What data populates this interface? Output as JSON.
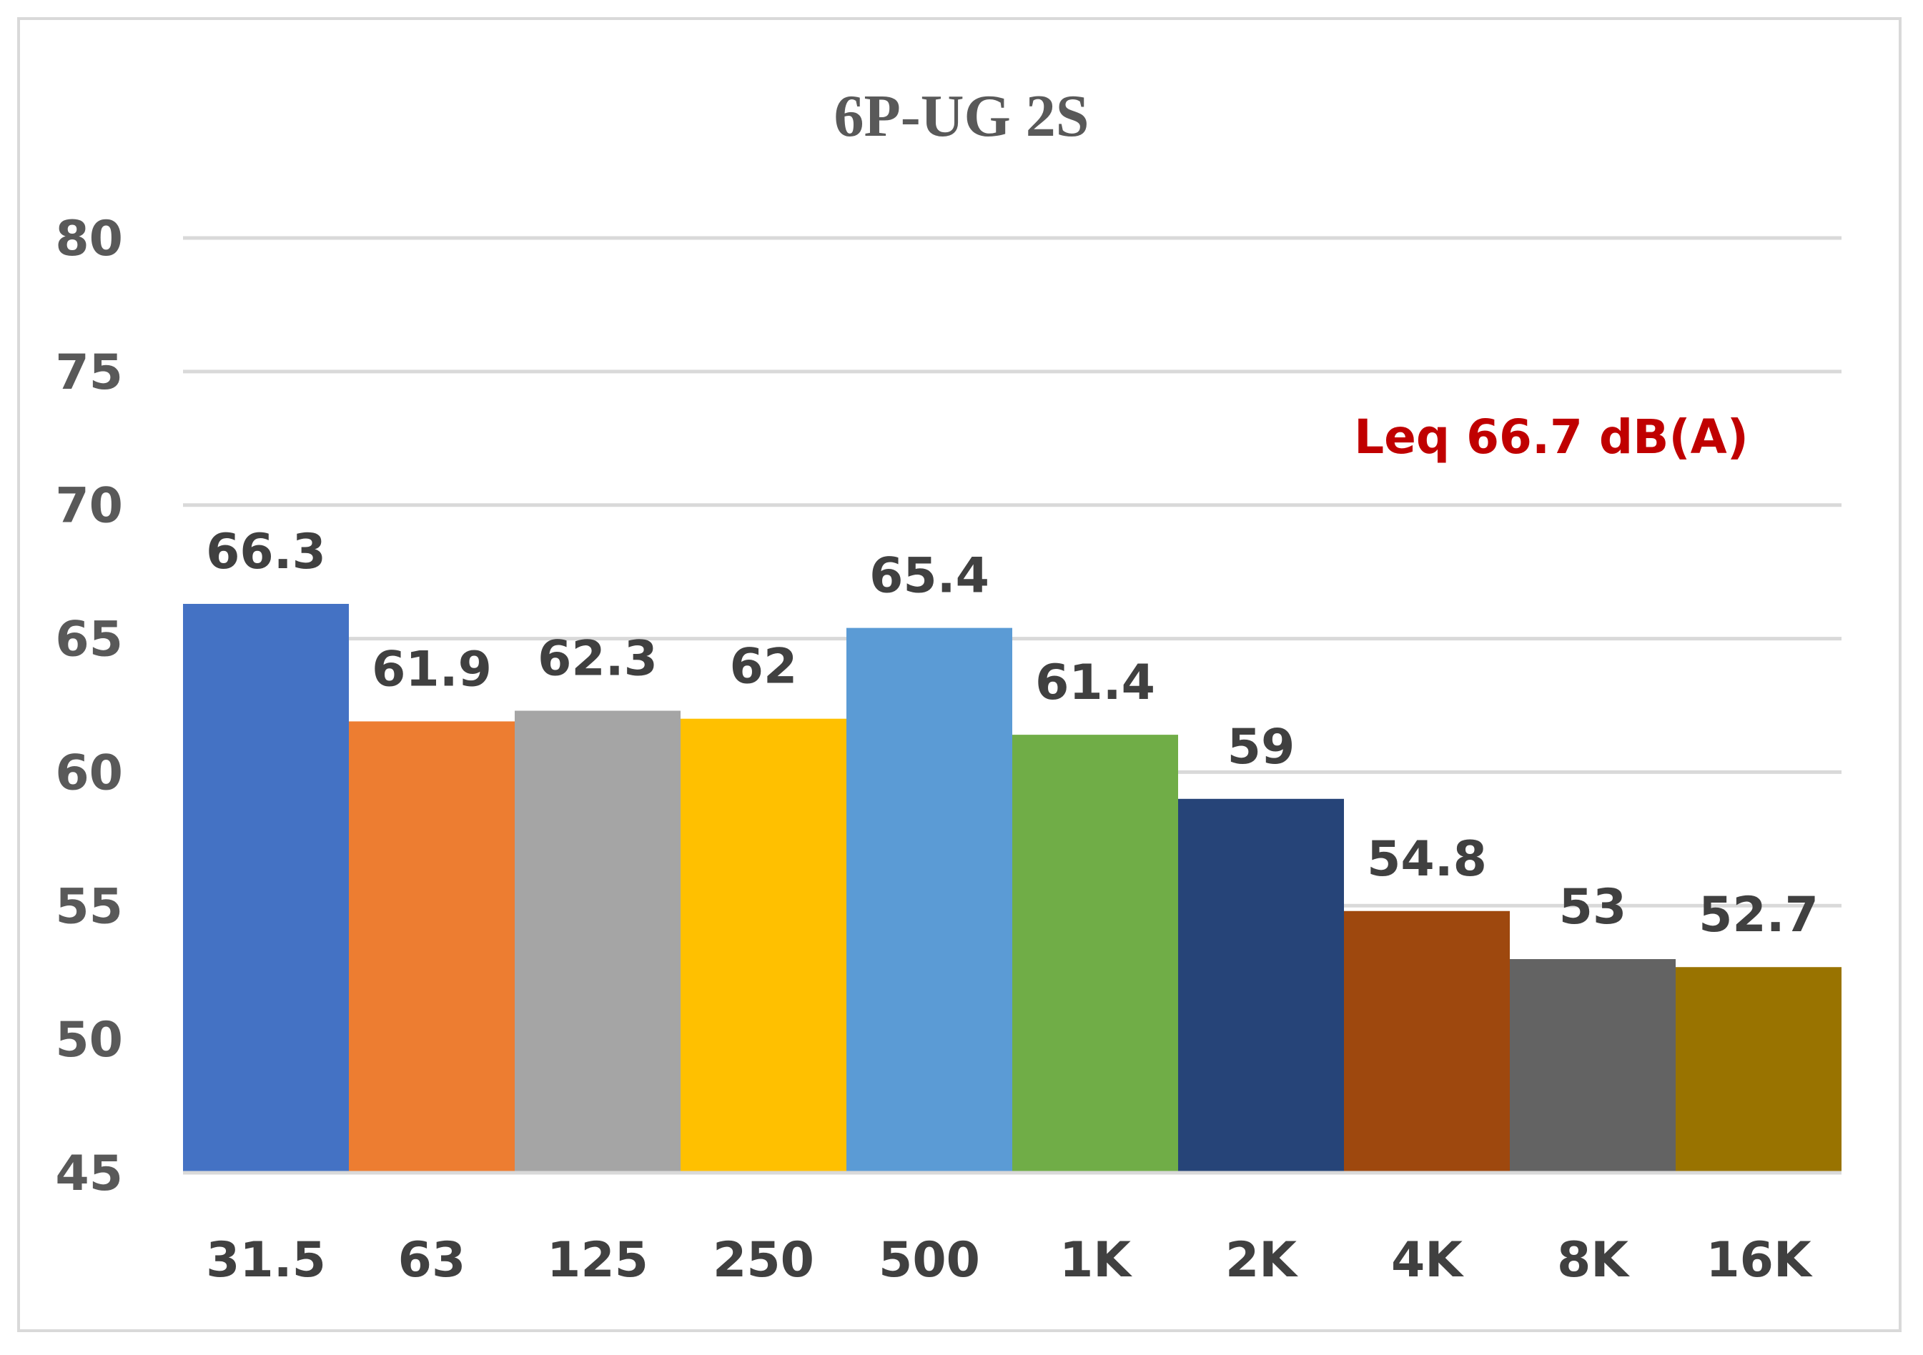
{
  "chart_data": {
    "type": "bar",
    "title": "6P-UG 2S",
    "xlabel": "",
    "ylabel": "",
    "categories": [
      "31.5",
      "63",
      "125",
      "250",
      "500",
      "1K",
      "2K",
      "4K",
      "8K",
      "16K"
    ],
    "values": [
      66.3,
      61.9,
      62.3,
      62,
      65.4,
      61.4,
      59,
      54.8,
      53,
      52.7
    ],
    "data_labels": [
      "66.3",
      "61.9",
      "62.3",
      "62",
      "65.4",
      "61.4",
      "59",
      "54.8",
      "53",
      "52.7"
    ],
    "colors": [
      "#4472c4",
      "#ed7d31",
      "#a5a5a5",
      "#ffc000",
      "#5b9bd5",
      "#70ad47",
      "#264478",
      "#9e480e",
      "#636363",
      "#997300"
    ],
    "ylim": [
      45,
      80
    ],
    "yticks": [
      "45",
      "50",
      "55",
      "60",
      "65",
      "70",
      "75",
      "80"
    ],
    "grid": true,
    "legend": "none",
    "annotation": "Leq 66.7 dB(A)",
    "annotation_color": "#c00000",
    "gridline_color": "#d9d9d9"
  }
}
